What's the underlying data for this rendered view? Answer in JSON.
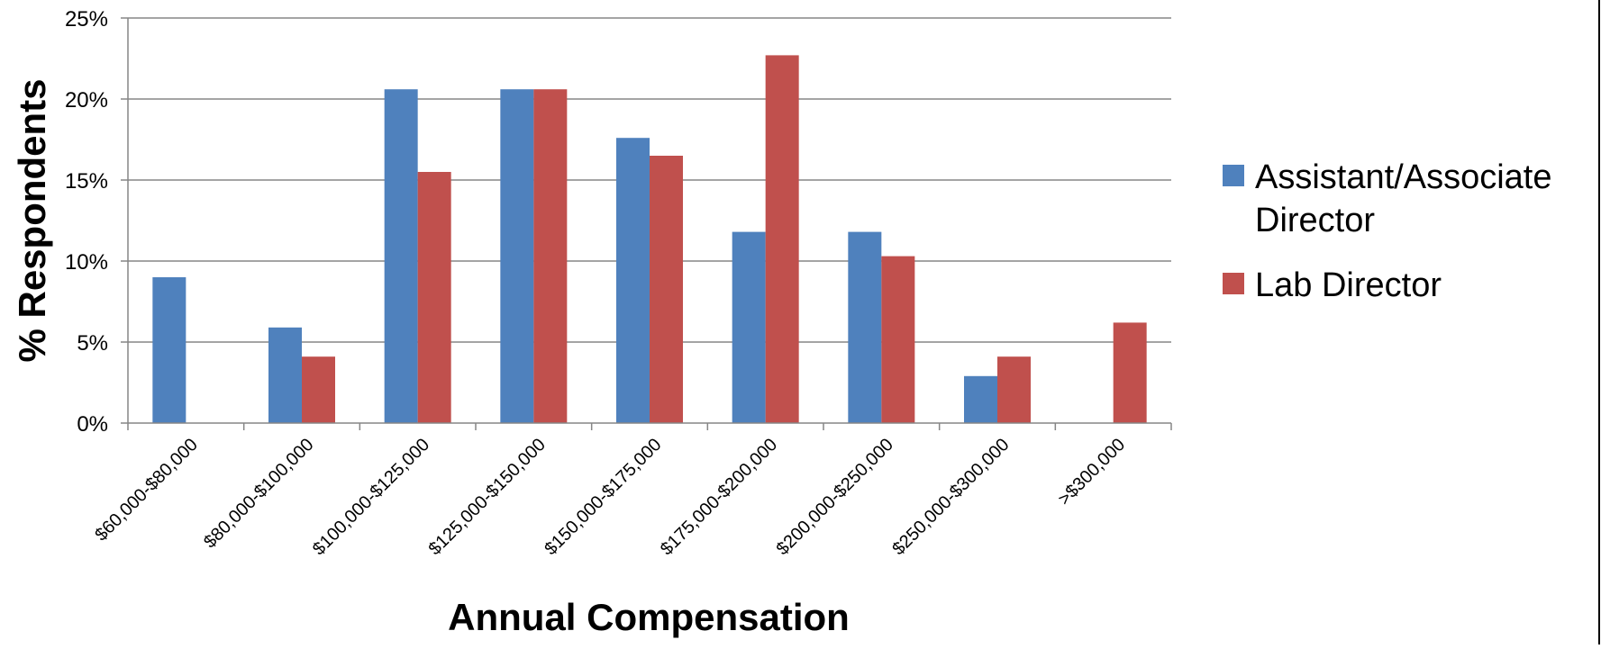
{
  "chart_data": {
    "type": "bar",
    "title": "",
    "xlabel": "Annual Compensation",
    "ylabel": "% Respondents",
    "ylim": [
      0,
      25
    ],
    "yticks": [
      0,
      5,
      10,
      15,
      20,
      25
    ],
    "ytick_labels": [
      "0%",
      "5%",
      "10%",
      "15%",
      "20%",
      "25%"
    ],
    "grid": "horizontal",
    "legend_position": "right",
    "categories": [
      "$60,000-$80,000",
      "$80,000-$100,000",
      "$100,000-$125,000",
      "$125,000-$150,000",
      "$150,000-$175,000",
      "$175,000-$200,000",
      "$200,000-$250,000",
      "$250,000-$300,000",
      ">$300,000"
    ],
    "series": [
      {
        "name_lines": [
          "Assistant/Associate",
          "Director"
        ],
        "color": "#4f81bd",
        "values": [
          9.0,
          5.9,
          20.6,
          20.6,
          17.6,
          11.8,
          11.8,
          2.9,
          0
        ]
      },
      {
        "name_lines": [
          "Lab Director"
        ],
        "color": "#c0504d",
        "values": [
          0,
          4.1,
          15.5,
          20.6,
          16.5,
          22.7,
          10.3,
          4.1,
          6.2
        ]
      }
    ]
  }
}
